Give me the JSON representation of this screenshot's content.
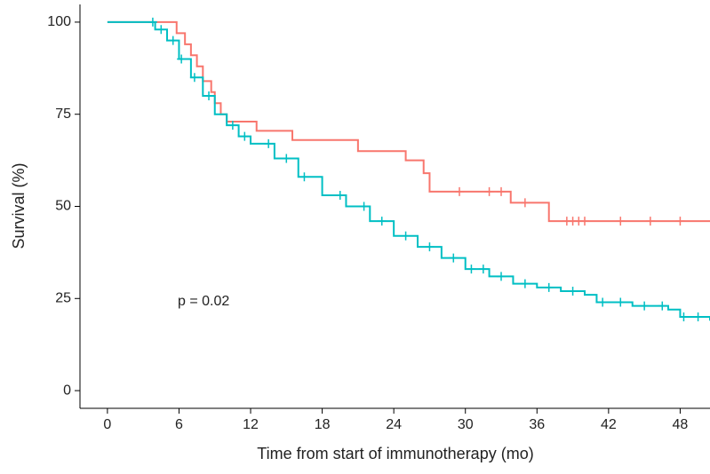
{
  "chart_data": {
    "type": "survival",
    "xlabel": "Time from start of immunotherapy (mo)",
    "ylabel": "Survival (%)",
    "annotation": "p = 0.02",
    "xlim": [
      -2.3,
      50.5
    ],
    "ylim": [
      -4.8,
      104.8
    ],
    "xticks": [
      0,
      6,
      12,
      18,
      24,
      30,
      36,
      42,
      48
    ],
    "yticks": [
      0,
      25,
      50,
      75,
      100
    ],
    "series": [
      {
        "color": "#f8766d",
        "x": [
          0,
          5.8,
          6.5,
          7,
          7.5,
          8,
          8.7,
          9,
          9.5,
          10,
          12.5,
          15.5,
          21,
          25,
          26.5,
          27,
          33.8,
          37,
          50.5
        ],
        "values": [
          100,
          97,
          94,
          91,
          88,
          84,
          81,
          78,
          75,
          73,
          70.5,
          68,
          65,
          62.5,
          59,
          54,
          51,
          46,
          46
        ],
        "censored_x": [
          29.5,
          32,
          33,
          35,
          38.5,
          39,
          39.5,
          40,
          43,
          45.5,
          48
        ]
      },
      {
        "color": "#00bfc4",
        "x": [
          0,
          3.5,
          4,
          5,
          6,
          7,
          8,
          9,
          10,
          11,
          12,
          14,
          16,
          18,
          20,
          22,
          24,
          26,
          28,
          30,
          32,
          34,
          36,
          38,
          40,
          41,
          44,
          47,
          48,
          50.5
        ],
        "values": [
          100,
          100,
          98,
          95,
          90,
          85,
          80,
          75,
          72,
          69,
          67,
          63,
          58,
          53,
          50,
          46,
          42,
          39,
          36,
          33,
          31,
          29,
          28,
          27,
          26,
          24,
          23,
          22,
          20,
          19
        ],
        "censored_x": [
          3.8,
          4.5,
          5.5,
          6.2,
          7.3,
          8.5,
          10.5,
          11.5,
          13.5,
          15,
          16.5,
          19.5,
          21.5,
          23,
          25,
          27,
          29,
          30.5,
          31.5,
          33,
          35,
          37,
          39,
          41.5,
          43,
          45,
          46.5,
          48.3,
          49.5
        ]
      }
    ]
  }
}
